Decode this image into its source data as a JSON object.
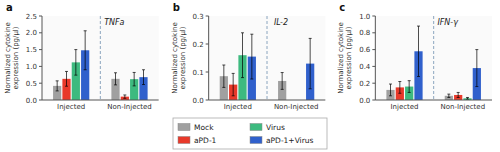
{
  "chart_data": [
    {
      "type": "bar",
      "title": "TNFa",
      "annotations": [
        "a"
      ],
      "ylabel": "Normalized cytokine\nexpression (pg/μl)",
      "categories": [
        "Injected",
        "Non-Injected"
      ],
      "series": [
        {
          "name": "Mock",
          "color": "#a0a0a0",
          "values": [
            0.42,
            0.63
          ],
          "errors": [
            0.15,
            0.18
          ]
        },
        {
          "name": "aPD-1",
          "color": "#e8392a",
          "values": [
            0.63,
            0.1
          ],
          "errors": [
            0.22,
            0.05
          ]
        },
        {
          "name": "Virus",
          "color": "#3dba7f",
          "values": [
            1.12,
            0.62
          ],
          "errors": [
            0.38,
            0.2
          ]
        },
        {
          "name": "aPD-1+Virus",
          "color": "#3060cc",
          "values": [
            1.48,
            0.68
          ],
          "errors": [
            0.58,
            0.22
          ]
        }
      ],
      "ylim": [
        0,
        2.5
      ],
      "yticks": [
        {
          "value": 0,
          "label": "0.0"
        },
        0.5,
        {
          "value": 1,
          "label": "1.0"
        },
        1.5,
        {
          "value": 2,
          "label": "2.0"
        },
        2.5
      ],
      "grid": false,
      "legend": "bottom"
    },
    {
      "type": "bar",
      "title": "IL-2",
      "annotations": [
        "b"
      ],
      "ylabel": "Normalized cytokine\nexpression (pg/μl)",
      "categories": [
        "Injected",
        "Non-Injected"
      ],
      "series": [
        {
          "name": "Mock",
          "color": "#a0a0a0",
          "values": [
            0.085,
            0.068
          ],
          "errors": [
            0.04,
            0.03
          ]
        },
        {
          "name": "aPD-1",
          "color": "#e8392a",
          "values": [
            0.055,
            0.0
          ],
          "errors": [
            0.04,
            0.0
          ]
        },
        {
          "name": "Virus",
          "color": "#3dba7f",
          "values": [
            0.16,
            0.0
          ],
          "errors": [
            0.08,
            0.0
          ]
        },
        {
          "name": "aPD-1+Virus",
          "color": "#3060cc",
          "values": [
            0.155,
            0.13
          ],
          "errors": [
            0.08,
            0.09
          ]
        }
      ],
      "ylim": [
        0,
        0.3
      ],
      "yticks": [
        {
          "value": 0,
          "label": "0.0"
        },
        0.1,
        0.2,
        0.3
      ],
      "grid": false
    },
    {
      "type": "bar",
      "title": "IFN-γ",
      "annotations": [
        "c"
      ],
      "ylabel": "Normalized cytokine\nexpression (pg/μl)",
      "categories": [
        "Injected",
        "Non-Injected"
      ],
      "series": [
        {
          "name": "Mock",
          "color": "#a0a0a0",
          "values": [
            0.12,
            0.05
          ],
          "errors": [
            0.07,
            0.02
          ]
        },
        {
          "name": "aPD-1",
          "color": "#e8392a",
          "values": [
            0.15,
            0.06
          ],
          "errors": [
            0.07,
            0.03
          ]
        },
        {
          "name": "Virus",
          "color": "#3dba7f",
          "values": [
            0.16,
            0.02
          ],
          "errors": [
            0.07,
            0.01
          ]
        },
        {
          "name": "aPD-1+Virus",
          "color": "#3060cc",
          "values": [
            0.58,
            0.38
          ],
          "errors": [
            0.3,
            0.22
          ]
        }
      ],
      "ylim": [
        0,
        1.0
      ],
      "yticks": [
        {
          "value": 0,
          "label": "0.0"
        },
        0.2,
        0.4,
        0.6,
        0.8,
        {
          "value": 1,
          "label": "1.0"
        }
      ],
      "grid": false
    }
  ]
}
